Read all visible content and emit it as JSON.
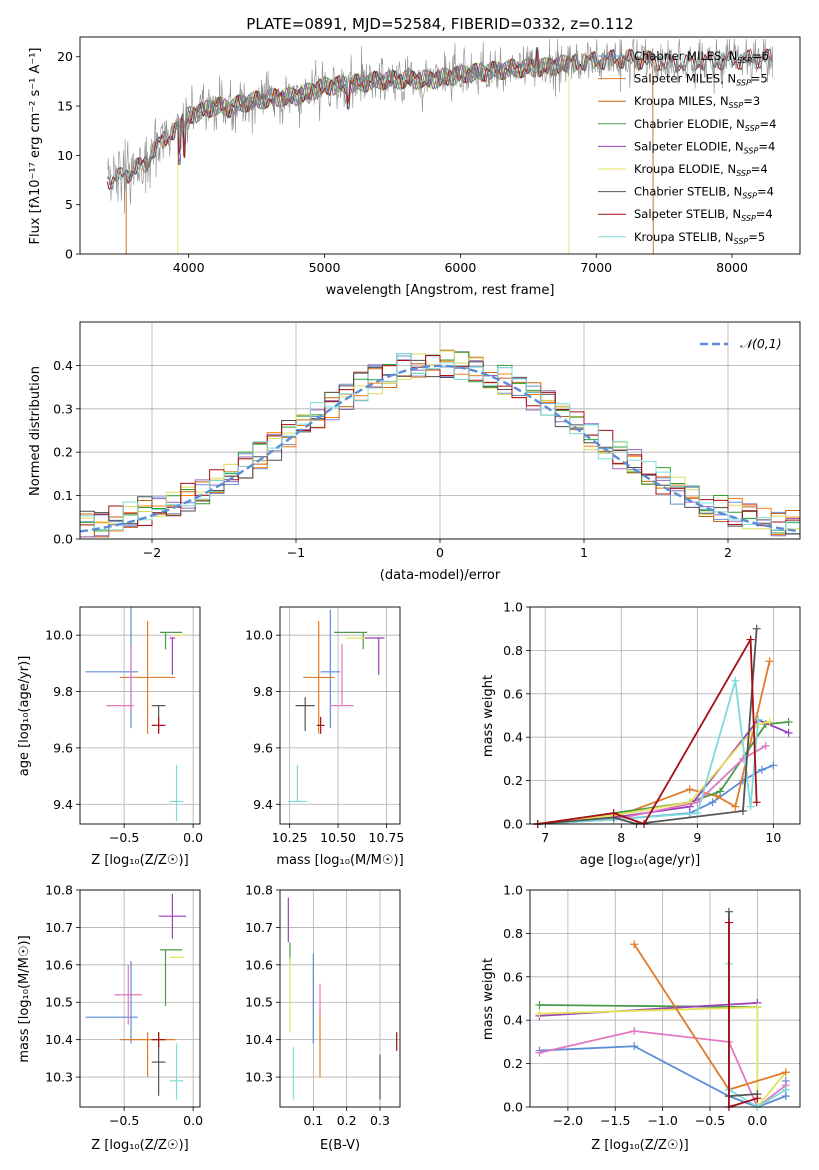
{
  "chart_data": [
    {
      "type": "line",
      "title": "PLATE=0891, MJD=52584, FIBERID=0332, z=0.112",
      "xlabel": "wavelength [Angstrom, rest frame]",
      "ylabel": "Flux [fλ10⁻¹⁷ erg cm⁻² s⁻¹ A⁻¹]",
      "xlim": [
        3200,
        8500
      ],
      "ylim": [
        0,
        22
      ],
      "xticks": [
        "4000",
        "5000",
        "6000",
        "7000",
        "8000"
      ],
      "yticks": [
        "0",
        "5",
        "10",
        "15",
        "20"
      ],
      "grid": false,
      "legend_position": "top-right",
      "series": [
        {
          "name": "Chabrier MILES, N_SSP=6",
          "color": "#1f77b4",
          "range": [
            3540,
            7420
          ],
          "data": true
        },
        {
          "name": "Salpeter MILES, N_SSP=5",
          "color": "#ff7f0e",
          "range": [
            3540,
            7420
          ]
        },
        {
          "name": "Kroupa MILES, N_SSP=3",
          "color": "#c7660e",
          "range": [
            3540,
            7420
          ]
        },
        {
          "name": "Chabrier ELODIE, N_SSP=4",
          "color": "#2ca02c",
          "range": [
            3920,
            6800
          ]
        },
        {
          "name": "Salpeter ELODIE, N_SSP=4",
          "color": "#9467bd",
          "range": [
            3920,
            6800
          ]
        },
        {
          "name": "Kroupa ELODIE, N_SSP=4",
          "color": "#dbdb5c",
          "range": [
            3920,
            6800
          ]
        },
        {
          "name": "Chabrier STELIB, N_SSP=4",
          "color": "#4d4d4d",
          "range": [
            3400,
            8300
          ]
        },
        {
          "name": "Salpeter STELIB, N_SSP=4",
          "color": "#a50f15",
          "range": [
            3400,
            8300
          ]
        },
        {
          "name": "Kroupa STELIB, N_SSP=5",
          "color": "#7fdbdb",
          "range": [
            3400,
            8300
          ]
        }
      ],
      "approx_continuum": {
        "x": [
          3400,
          3500,
          3600,
          3700,
          3800,
          3900,
          4000,
          4100,
          4200,
          4300,
          4400,
          4600,
          4800,
          5000,
          5200,
          5400,
          5600,
          5800,
          6000,
          6200,
          6400,
          6600,
          6800,
          7000,
          7200,
          7400,
          7600,
          7800,
          8000,
          8200,
          8300
        ],
        "y": [
          7.5,
          7.8,
          8.5,
          9.5,
          11.5,
          12.5,
          14.0,
          14.5,
          15.0,
          14.8,
          15.3,
          15.8,
          16.0,
          17.0,
          17.2,
          17.6,
          17.7,
          17.7,
          18.2,
          18.5,
          18.8,
          18.9,
          19.3,
          19.6,
          19.8,
          19.6,
          19.3,
          19.5,
          19.6,
          19.8,
          19.8
        ]
      }
    },
    {
      "type": "line",
      "xlabel": "(data-model)/error",
      "ylabel": "Normed distribution",
      "xlim": [
        -2.5,
        2.5
      ],
      "ylim": [
        0,
        0.5
      ],
      "xticks": [
        "−2",
        "−1",
        "0",
        "1",
        "2"
      ],
      "yticks": [
        "0.0",
        "0.1",
        "0.2",
        "0.3",
        "0.4"
      ],
      "grid": true,
      "legend": [
        {
          "name": "𝒩(0,1)",
          "style": "dashed",
          "color": "#5b8ed6"
        }
      ],
      "histogram_bins": 50,
      "histogram_colors": [
        "#1f77b4",
        "#ff7f0e",
        "#c7660e",
        "#2ca02c",
        "#9467bd",
        "#dbdb5c",
        "#4d4d4d",
        "#a50f15",
        "#7fdbdb"
      ]
    },
    {
      "type": "scatter",
      "xlabel": "Z [log₁₀(Z/Z☉)]",
      "ylabel": "age  [log₁₀(age/yr)]",
      "xlim": [
        -0.82,
        0.05
      ],
      "ylim": [
        9.33,
        10.1
      ],
      "xticks": [
        "−0.5",
        "0.0"
      ],
      "yticks": [
        "9.4",
        "9.6",
        "9.8",
        "10.0"
      ],
      "grid": true
    },
    {
      "type": "scatter",
      "xlabel": "mass [log₁₀(M/M☉)]",
      "xlim": [
        10.2,
        10.82
      ],
      "ylim": [
        9.33,
        10.1
      ],
      "xticks": [
        "10.25",
        "10.50",
        "10.75"
      ],
      "yticks": [
        "9.4",
        "9.6",
        "9.8",
        "10.0"
      ],
      "grid": true
    },
    {
      "type": "line",
      "xlabel": "age  [log₁₀(age/yr)]",
      "ylabel": "mass weight",
      "xlim": [
        6.8,
        10.35
      ],
      "ylim": [
        0,
        1
      ],
      "xticks": [
        "7",
        "8",
        "9",
        "10"
      ],
      "yticks": [
        "0.0",
        "0.2",
        "0.4",
        "0.6",
        "0.8",
        "1.0"
      ],
      "grid": true
    },
    {
      "type": "scatter",
      "xlabel": "Z [log₁₀(Z/Z☉)]",
      "ylabel": "mass [log₁₀(M/M☉)]",
      "xlim": [
        -0.82,
        0.05
      ],
      "ylim": [
        10.22,
        10.8
      ],
      "xticks": [
        "−0.5",
        "0.0"
      ],
      "yticks": [
        "10.3",
        "10.4",
        "10.5",
        "10.6",
        "10.7",
        "10.8"
      ],
      "grid": true
    },
    {
      "type": "scatter",
      "xlabel": "E(B-V)",
      "xlim": [
        0.0,
        0.36
      ],
      "ylim": [
        10.22,
        10.8
      ],
      "xticks": [
        "0.1",
        "0.2",
        "0.3"
      ],
      "yticks": [
        "10.3",
        "10.4",
        "10.5",
        "10.6",
        "10.7",
        "10.8"
      ],
      "grid": true
    },
    {
      "type": "line",
      "xlabel": "Z [log₁₀(Z/Z☉)]",
      "ylabel": "mass weight",
      "xlim": [
        -2.4,
        0.45
      ],
      "ylim": [
        0,
        1
      ],
      "xticks": [
        "−2.0",
        "−1.5",
        "−1.0",
        "−0.5",
        "0.0"
      ],
      "yticks": [
        "0.0",
        "0.2",
        "0.4",
        "0.6",
        "0.8",
        "1.0"
      ],
      "grid": true
    }
  ],
  "colors": {
    "c0": "#5b8ed6",
    "c1": "#e07b2a",
    "c2": "#c7660e",
    "c3": "#4a9a4a",
    "c4": "#9b3fbf",
    "c5": "#e3e35a",
    "c6": "#555555",
    "c7": "#a50f15",
    "c8": "#7fdbdb",
    "pink": "#e377c2"
  }
}
